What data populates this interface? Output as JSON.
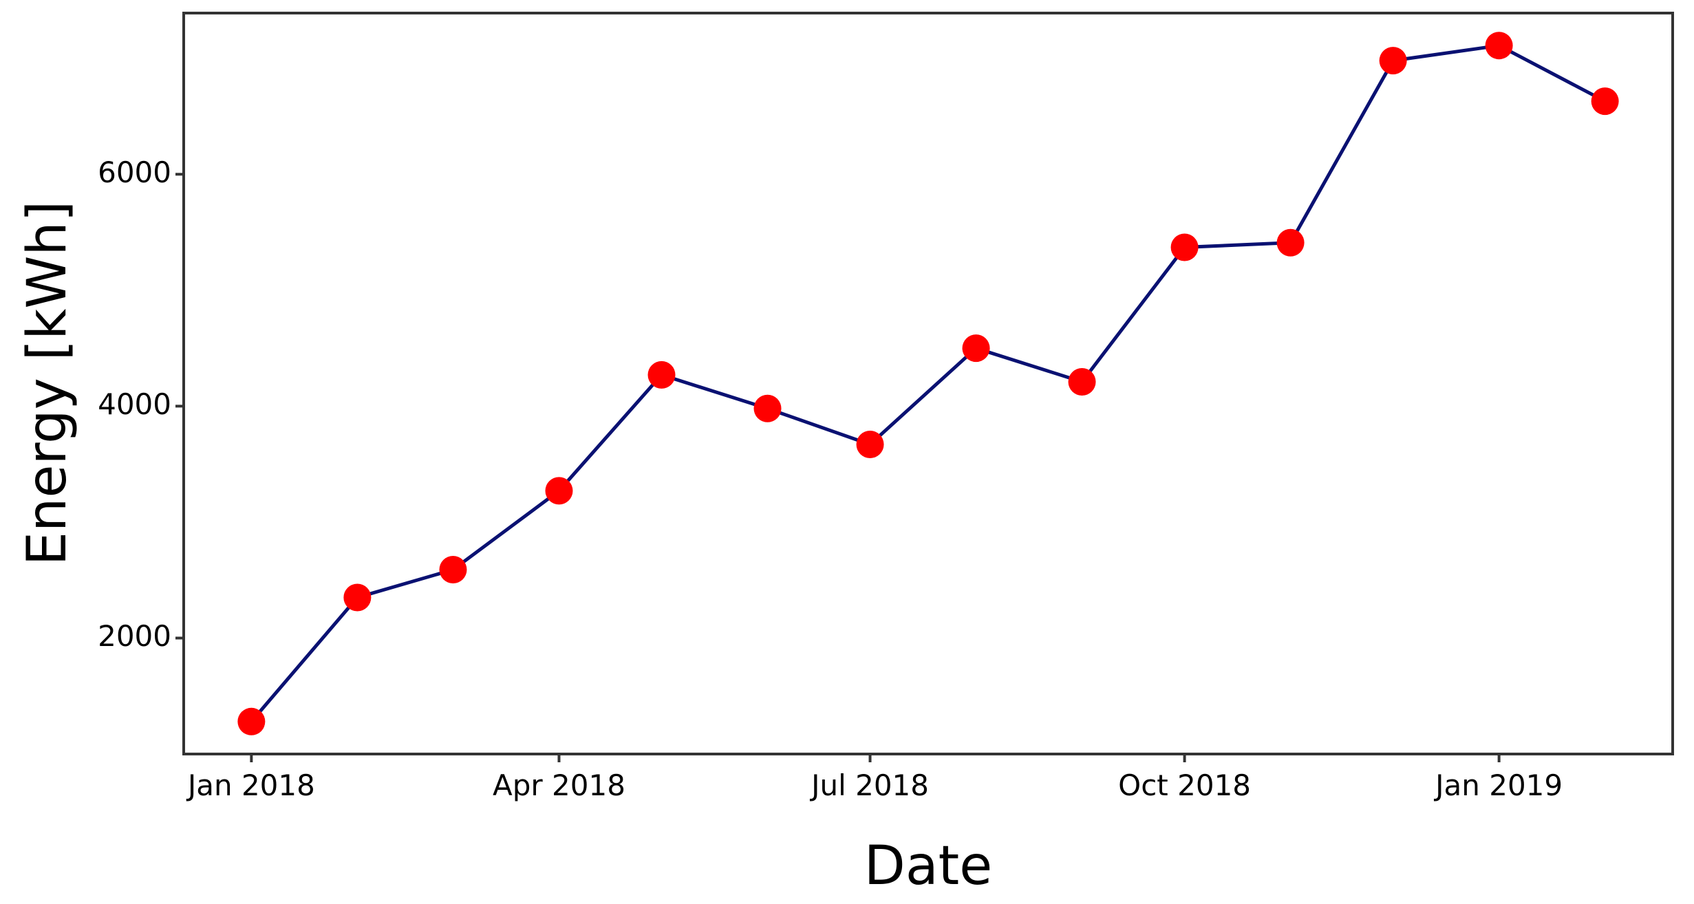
{
  "chart_data": {
    "type": "line",
    "x_label": "Date",
    "y_label": "Energy [kWh]",
    "x": [
      "2018-01",
      "2018-02",
      "2018-03",
      "2018-04",
      "2018-05",
      "2018-06",
      "2018-07",
      "2018-08",
      "2018-09",
      "2018-10",
      "2018-11",
      "2018-12",
      "2019-01",
      "2019-02"
    ],
    "series": [
      {
        "name": "Energy",
        "line_color": "#0a1172",
        "color": "#ff0000",
        "values": [
          1280,
          2350,
          2590,
          3270,
          4270,
          3980,
          3670,
          4500,
          4210,
          5370,
          5410,
          6980,
          7110,
          6630
        ]
      }
    ],
    "ylim": [
      1000,
      7390
    ],
    "yticks": [
      2000,
      4000,
      6000
    ],
    "xticks": [
      {
        "value": "2018-01",
        "label": "Jan 2018"
      },
      {
        "value": "2018-04",
        "label": "Apr 2018"
      },
      {
        "value": "2018-07",
        "label": "Jul 2018"
      },
      {
        "value": "2018-10",
        "label": "Oct 2018"
      },
      {
        "value": "2019-01",
        "label": "Jan 2019"
      }
    ],
    "grid": false
  }
}
